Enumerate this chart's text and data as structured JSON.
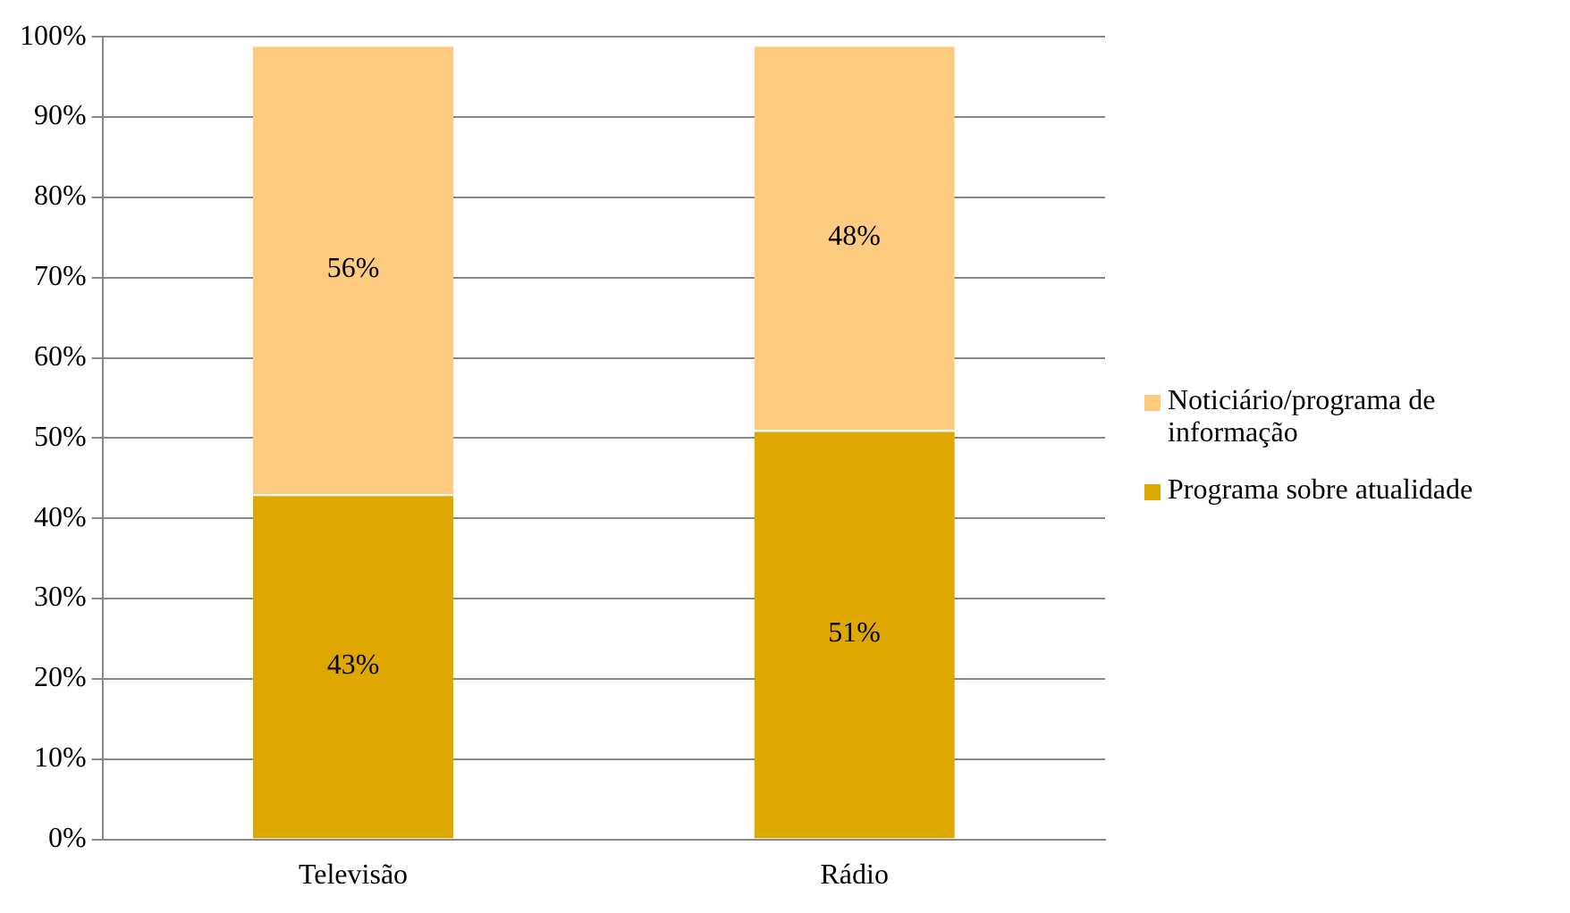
{
  "chart_data": {
    "type": "bar",
    "stacked": true,
    "categories": [
      "Televisão",
      "Rádio"
    ],
    "series": [
      {
        "name": "Programa sobre atualidade",
        "color": "#dfa800",
        "values": [
          43,
          51
        ],
        "value_labels": [
          "43%",
          "51%"
        ]
      },
      {
        "name": "Noticiário/programa de informação",
        "color": "#fdcb80",
        "values": [
          56,
          48
        ],
        "value_labels": [
          "56%",
          "48%"
        ]
      }
    ],
    "ylim": [
      0,
      100
    ],
    "yticks": [
      {
        "value": 0,
        "label": "0%"
      },
      {
        "value": 10,
        "label": "10%"
      },
      {
        "value": 20,
        "label": "20%"
      },
      {
        "value": 30,
        "label": "30%"
      },
      {
        "value": 40,
        "label": "40%"
      },
      {
        "value": 50,
        "label": "50%"
      },
      {
        "value": 60,
        "label": "60%"
      },
      {
        "value": 70,
        "label": "70%"
      },
      {
        "value": 80,
        "label": "80%"
      },
      {
        "value": 90,
        "label": "90%"
      },
      {
        "value": 100,
        "label": "100%"
      }
    ],
    "grid": "y",
    "legend": "right"
  }
}
